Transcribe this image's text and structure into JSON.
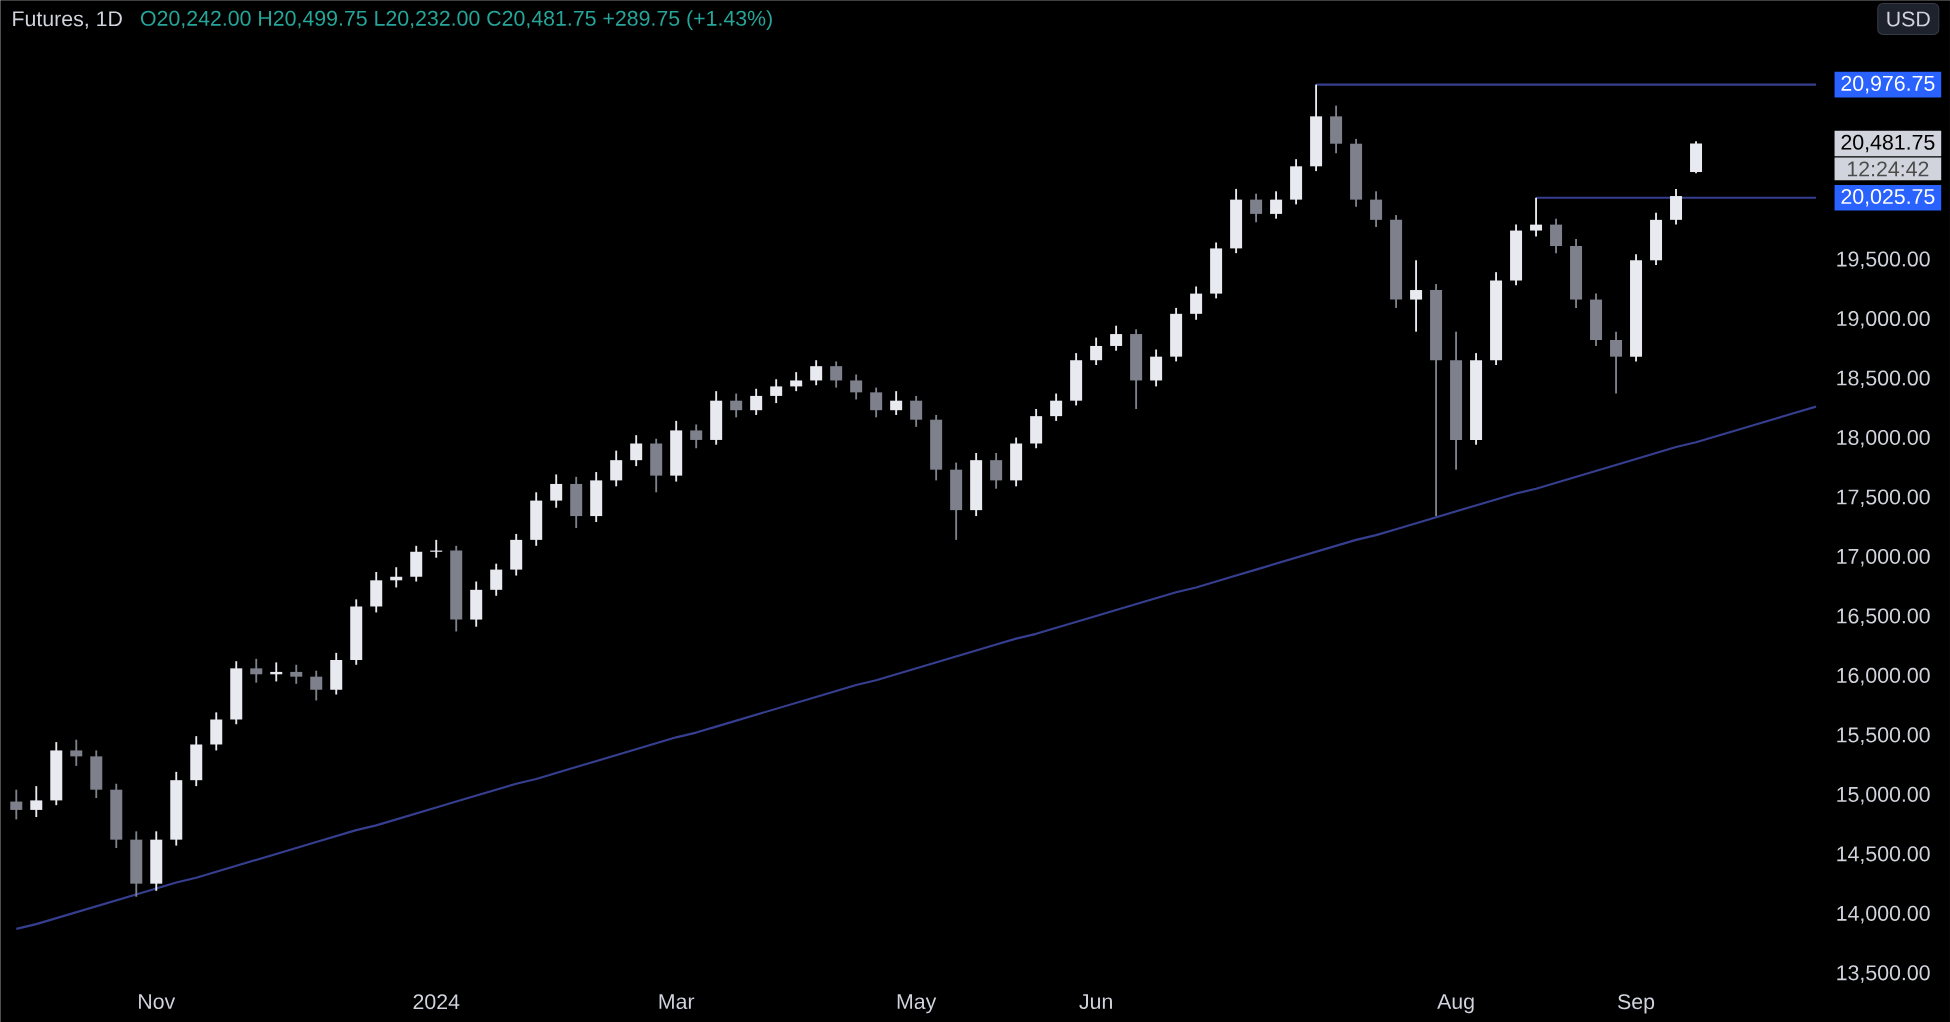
{
  "chart_data": {
    "type": "candlestick",
    "title": "Futures, 1D",
    "subtitle": "O20,242.00 H20,499.75 L20,232.00 C20,481.75 +289.75 (+1.43%)",
    "categories": [
      null,
      null,
      null,
      null,
      null,
      null,
      null,
      "Nov",
      null,
      null,
      null,
      null,
      null,
      null,
      null,
      null,
      null,
      null,
      null,
      null,
      null,
      "2024",
      null,
      null,
      null,
      null,
      null,
      null,
      null,
      null,
      null,
      null,
      null,
      "Mar",
      null,
      null,
      null,
      null,
      null,
      null,
      null,
      null,
      null,
      null,
      null,
      "May",
      null,
      null,
      null,
      null,
      null,
      null,
      null,
      null,
      "Jun",
      null,
      null,
      null,
      null,
      null,
      null,
      null,
      null,
      null,
      null,
      null,
      null,
      null,
      null,
      null,
      null,
      null,
      "Aug",
      null,
      null,
      null,
      null,
      null,
      null,
      null,
      null,
      "Sep",
      null,
      null,
      null,
      null,
      null,
      null,
      null,
      null,
      null
    ],
    "ohlc": [
      [
        14950,
        15050,
        14800,
        14880
      ],
      [
        14880,
        15080,
        14820,
        14960
      ],
      [
        14960,
        15450,
        14920,
        15380
      ],
      [
        15380,
        15470,
        15250,
        15330
      ],
      [
        15330,
        15380,
        14980,
        15050
      ],
      [
        15050,
        15100,
        14560,
        14630
      ],
      [
        14630,
        14700,
        14150,
        14260
      ],
      [
        14260,
        14700,
        14200,
        14630
      ],
      [
        14630,
        15200,
        14580,
        15130
      ],
      [
        15130,
        15500,
        15080,
        15430
      ],
      [
        15430,
        15700,
        15380,
        15640
      ],
      [
        15640,
        16130,
        15600,
        16070
      ],
      [
        16070,
        16150,
        15950,
        16020
      ],
      [
        16020,
        16120,
        15960,
        16040
      ],
      [
        16040,
        16100,
        15940,
        16000
      ],
      [
        16000,
        16050,
        15800,
        15890
      ],
      [
        15890,
        16200,
        15850,
        16140
      ],
      [
        16140,
        16650,
        16100,
        16590
      ],
      [
        16590,
        16880,
        16540,
        16810
      ],
      [
        16810,
        16920,
        16750,
        16840
      ],
      [
        16840,
        17100,
        16800,
        17050
      ],
      [
        17050,
        17150,
        17000,
        17060
      ],
      [
        17060,
        17100,
        16380,
        16480
      ],
      [
        16480,
        16800,
        16420,
        16730
      ],
      [
        16730,
        16950,
        16680,
        16900
      ],
      [
        16900,
        17200,
        16850,
        17150
      ],
      [
        17150,
        17550,
        17100,
        17480
      ],
      [
        17480,
        17700,
        17420,
        17620
      ],
      [
        17620,
        17680,
        17250,
        17350
      ],
      [
        17350,
        17720,
        17300,
        17650
      ],
      [
        17650,
        17900,
        17600,
        17820
      ],
      [
        17820,
        18030,
        17770,
        17960
      ],
      [
        17960,
        18000,
        17550,
        17690
      ],
      [
        17690,
        18150,
        17640,
        18070
      ],
      [
        18070,
        18120,
        17920,
        17990
      ],
      [
        17990,
        18400,
        17950,
        18320
      ],
      [
        18320,
        18380,
        18180,
        18240
      ],
      [
        18240,
        18420,
        18200,
        18360
      ],
      [
        18360,
        18500,
        18300,
        18440
      ],
      [
        18440,
        18560,
        18400,
        18490
      ],
      [
        18490,
        18660,
        18450,
        18610
      ],
      [
        18610,
        18650,
        18430,
        18490
      ],
      [
        18490,
        18540,
        18330,
        18390
      ],
      [
        18390,
        18430,
        18180,
        18240
      ],
      [
        18240,
        18400,
        18200,
        18320
      ],
      [
        18320,
        18360,
        18100,
        18160
      ],
      [
        18160,
        18200,
        17650,
        17740
      ],
      [
        17740,
        17800,
        17150,
        17400
      ],
      [
        17400,
        17880,
        17350,
        17820
      ],
      [
        17820,
        17880,
        17580,
        17650
      ],
      [
        17650,
        18010,
        17600,
        17960
      ],
      [
        17960,
        18250,
        17920,
        18190
      ],
      [
        18190,
        18380,
        18150,
        18320
      ],
      [
        18320,
        18720,
        18280,
        18660
      ],
      [
        18660,
        18850,
        18620,
        18780
      ],
      [
        18780,
        18950,
        18740,
        18880
      ],
      [
        18880,
        18920,
        18250,
        18490
      ],
      [
        18490,
        18750,
        18440,
        18690
      ],
      [
        18690,
        19100,
        18650,
        19050
      ],
      [
        19050,
        19280,
        19000,
        19220
      ],
      [
        19220,
        19650,
        19180,
        19600
      ],
      [
        19600,
        20100,
        19560,
        20010
      ],
      [
        20010,
        20060,
        19820,
        19890
      ],
      [
        19890,
        20080,
        19850,
        20010
      ],
      [
        20010,
        20350,
        19970,
        20290
      ],
      [
        20290,
        20976.75,
        20250,
        20710
      ],
      [
        20710,
        20800,
        20400,
        20480
      ],
      [
        20480,
        20520,
        19950,
        20010
      ],
      [
        20010,
        20080,
        19780,
        19840
      ],
      [
        19840,
        19880,
        19100,
        19170
      ],
      [
        19170,
        19500,
        18900,
        19250
      ],
      [
        19250,
        19300,
        17350,
        18660
      ],
      [
        18660,
        18900,
        17740,
        17990
      ],
      [
        17990,
        18720,
        17950,
        18660
      ],
      [
        18660,
        19400,
        18620,
        19330
      ],
      [
        19330,
        19800,
        19290,
        19750
      ],
      [
        19750,
        20025.75,
        19700,
        19800
      ],
      [
        19800,
        19850,
        19560,
        19620
      ],
      [
        19620,
        19680,
        19100,
        19170
      ],
      [
        19170,
        19220,
        18780,
        18830
      ],
      [
        18830,
        18900,
        18380,
        18690
      ],
      [
        18690,
        19550,
        18650,
        19500
      ],
      [
        19500,
        19900,
        19460,
        19840
      ],
      [
        19840,
        20100,
        19800,
        20040
      ],
      [
        20242,
        20499.75,
        20232,
        20481.75
      ],
      null,
      null,
      null,
      null,
      null,
      null
    ],
    "ylim": [
      13500,
      21686
    ],
    "yticks": [
      {
        "value": 13500,
        "label": "13,500.00"
      },
      {
        "value": 14000,
        "label": "14,000.00"
      },
      {
        "value": 14500,
        "label": "14,500.00"
      },
      {
        "value": 15000,
        "label": "15,000.00"
      },
      {
        "value": 15500,
        "label": "15,500.00"
      },
      {
        "value": 16000,
        "label": "16,000.00"
      },
      {
        "value": 16500,
        "label": "16,500.00"
      },
      {
        "value": 17000,
        "label": "17,000.00"
      },
      {
        "value": 17500,
        "label": "17,500.00"
      },
      {
        "value": 18000,
        "label": "18,000.00"
      },
      {
        "value": 18500,
        "label": "18,500.00"
      },
      {
        "value": 19000,
        "label": "19,000.00"
      },
      {
        "value": 19500,
        "label": "19,500.00"
      },
      {
        "value": 20025.75,
        "label": "20,025.75"
      },
      {
        "value": 20481.75,
        "label": "20,481.75"
      },
      {
        "value": 20976.75,
        "label": "20,976.75"
      }
    ],
    "series": [
      {
        "type": "line",
        "color": "#363f8f",
        "values": [
          13880,
          13920,
          13970,
          14020,
          14070,
          14120,
          14170,
          14220,
          14270,
          14310,
          14360,
          14410,
          14460,
          14510,
          14560,
          14610,
          14660,
          14710,
          14750,
          14800,
          14850,
          14900,
          14950,
          15000,
          15050,
          15100,
          15140,
          15190,
          15240,
          15290,
          15340,
          15390,
          15440,
          15490,
          15530,
          15580,
          15630,
          15680,
          15730,
          15780,
          15830,
          15880,
          15930,
          15970,
          16020,
          16070,
          16120,
          16170,
          16220,
          16270,
          16320,
          16360,
          16410,
          16460,
          16510,
          16560,
          16610,
          16660,
          16710,
          16750,
          16800,
          16850,
          16900,
          16950,
          17000,
          17050,
          17100,
          17150,
          17190,
          17240,
          17290,
          17340,
          17390,
          17440,
          17490,
          17540,
          17580,
          17630,
          17680,
          17730,
          17780,
          17830,
          17880,
          17930,
          17970,
          18020,
          18070,
          18120,
          18170,
          18220,
          18270
        ]
      },
      {
        "type": "line",
        "color": "#363f8f",
        "values": [
          null,
          null,
          null,
          null,
          null,
          null,
          null,
          null,
          null,
          null,
          null,
          null,
          null,
          null,
          null,
          null,
          null,
          null,
          null,
          null,
          null,
          null,
          null,
          null,
          null,
          null,
          null,
          null,
          null,
          null,
          null,
          null,
          null,
          null,
          null,
          null,
          null,
          null,
          null,
          null,
          null,
          null,
          null,
          null,
          null,
          null,
          null,
          null,
          null,
          null,
          null,
          null,
          null,
          null,
          null,
          null,
          null,
          null,
          null,
          null,
          null,
          null,
          null,
          null,
          null,
          20976.75,
          20976.75,
          20976.75,
          20976.75,
          20976.75,
          20976.75,
          20976.75,
          20976.75,
          20976.75,
          20976.75,
          20976.75,
          20976.75,
          20976.75,
          20976.75,
          20976.75,
          20976.75,
          20976.75,
          20976.75,
          20976.75,
          20976.75,
          20976.75,
          20976.75,
          20976.75,
          20976.75,
          20976.75,
          20976.75
        ]
      },
      {
        "type": "line",
        "color": "#363f8f",
        "values": [
          null,
          null,
          null,
          null,
          null,
          null,
          null,
          null,
          null,
          null,
          null,
          null,
          null,
          null,
          null,
          null,
          null,
          null,
          null,
          null,
          null,
          null,
          null,
          null,
          null,
          null,
          null,
          null,
          null,
          null,
          null,
          null,
          null,
          null,
          null,
          null,
          null,
          null,
          null,
          null,
          null,
          null,
          null,
          null,
          null,
          null,
          null,
          null,
          null,
          null,
          null,
          null,
          null,
          null,
          null,
          null,
          null,
          null,
          null,
          null,
          null,
          null,
          null,
          null,
          null,
          null,
          null,
          null,
          null,
          null,
          null,
          null,
          null,
          null,
          null,
          null,
          20025.75,
          20025.75,
          20025.75,
          20025.75,
          20025.75,
          20025.75,
          20025.75,
          20025.75,
          20025.75,
          20025.75,
          20025.75,
          20025.75,
          20025.75,
          20025.75,
          20025.75
        ]
      }
    ],
    "annotations": [
      "USD",
      "12:24:42"
    ]
  }
}
